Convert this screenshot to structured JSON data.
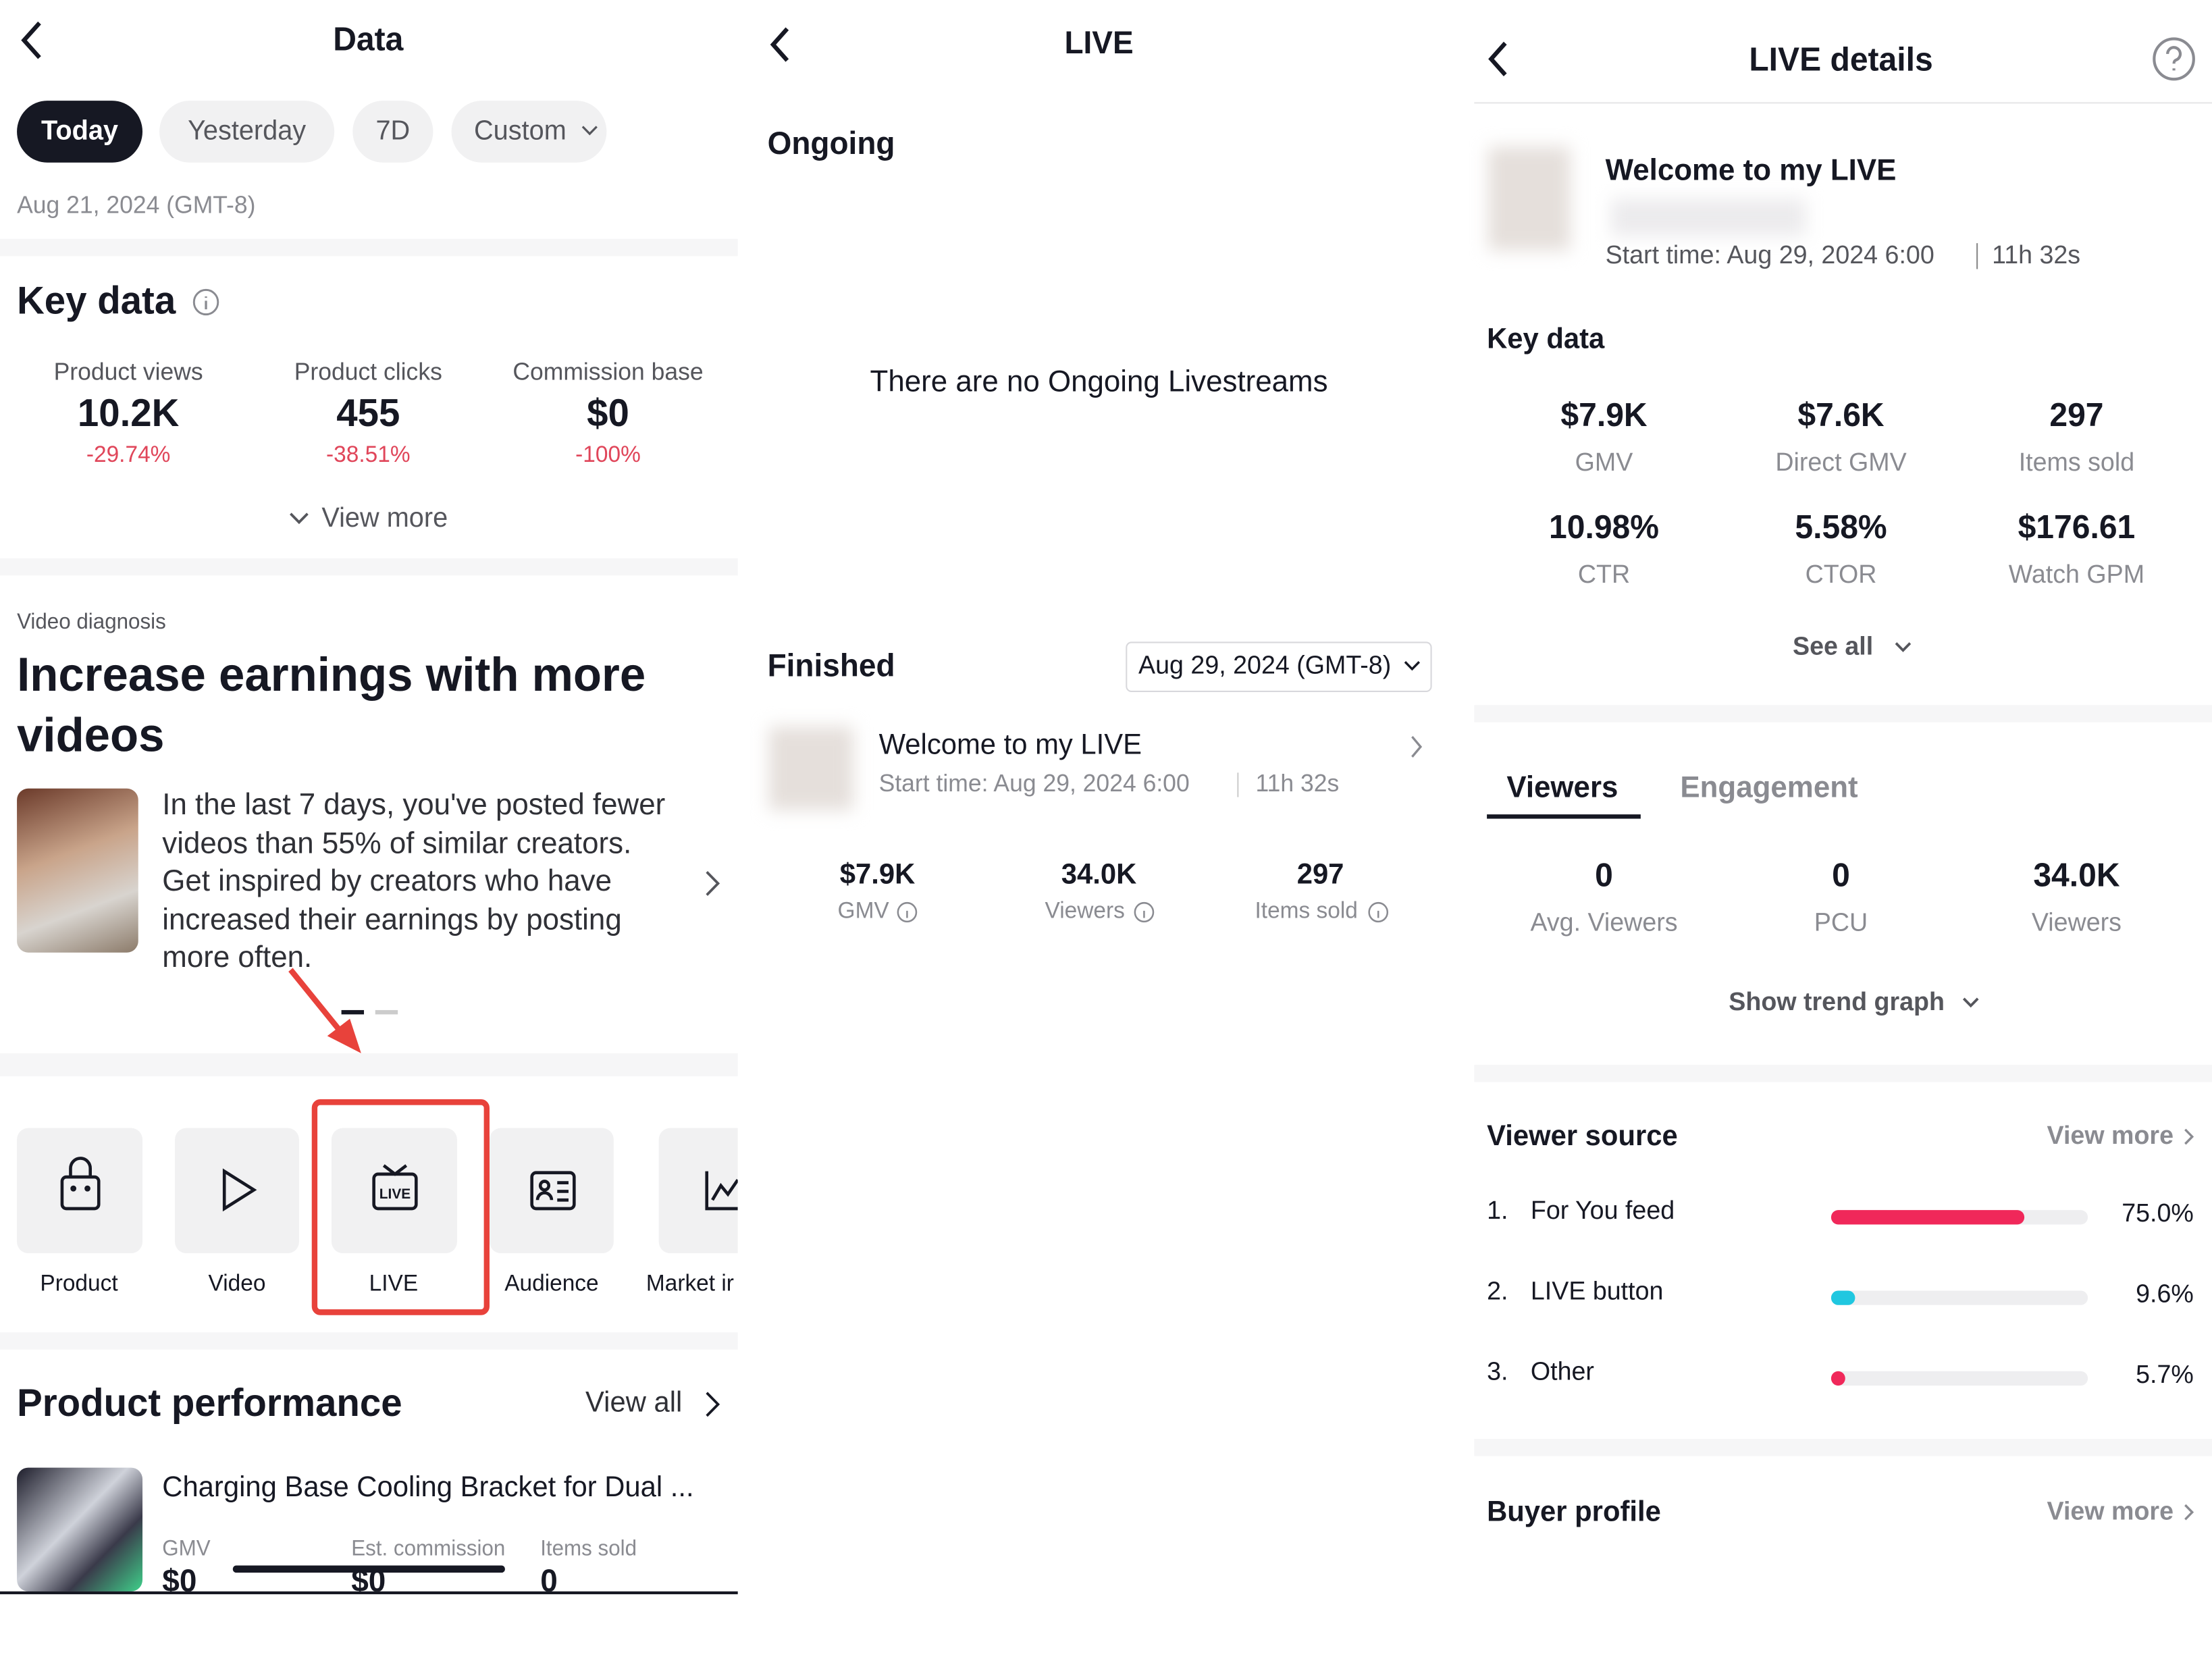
{
  "panel1": {
    "title": "Data",
    "tabs": [
      "Today",
      "Yesterday",
      "7D",
      "Custom"
    ],
    "date": "Aug 21, 2024 (GMT-8)",
    "key_data": {
      "title": "Key data",
      "metrics": [
        {
          "label": "Product views",
          "value": "10.2K",
          "change": "-29.74%"
        },
        {
          "label": "Product clicks",
          "value": "455",
          "change": "-38.51%"
        },
        {
          "label": "Commission base",
          "value": "$0",
          "change": "-100%"
        }
      ],
      "view_more": "View more"
    },
    "diagnosis": {
      "label": "Video diagnosis",
      "title": "Increase earnings with more videos",
      "text": "In the last 7 days, you've posted fewer videos than 55% of similar creators. Get inspired by creators who have increased their earnings by posting more often."
    },
    "tools": [
      "Product",
      "Video",
      "LIVE",
      "Audience",
      "Market ir"
    ],
    "performance": {
      "title": "Product performance",
      "view_all": "View all",
      "product": "Charging Base Cooling Bracket for Dual ...",
      "columns": [
        {
          "label": "GMV",
          "value": "$0"
        },
        {
          "label": "Est. commission",
          "value": "$0"
        },
        {
          "label": "Items sold",
          "value": "0"
        }
      ]
    }
  },
  "panel2": {
    "title": "LIVE",
    "ongoing": "Ongoing",
    "empty": "There are no Ongoing Livestreams",
    "finished": "Finished",
    "date": "Aug 29, 2024 (GMT-8)",
    "live": {
      "title": "Welcome to my LIVE",
      "start": "Start time: Aug 29, 2024 6:00",
      "duration": "11h 32s",
      "metrics": [
        {
          "value": "$7.9K",
          "label": "GMV"
        },
        {
          "value": "34.0K",
          "label": "Viewers"
        },
        {
          "value": "297",
          "label": "Items sold"
        }
      ]
    }
  },
  "panel3": {
    "title": "LIVE details",
    "live_title": "Welcome to my LIVE",
    "start": "Start time: Aug 29, 2024 6:00",
    "duration": "11h 32s",
    "key_data": "Key data",
    "metrics": [
      {
        "value": "$7.9K",
        "label": "GMV"
      },
      {
        "value": "$7.6K",
        "label": "Direct GMV"
      },
      {
        "value": "297",
        "label": "Items sold"
      },
      {
        "value": "10.98%",
        "label": "CTR"
      },
      {
        "value": "5.58%",
        "label": "CTOR"
      },
      {
        "value": "$176.61",
        "label": "Watch GPM"
      }
    ],
    "see_all": "See all",
    "tabs": [
      "Viewers",
      "Engagement"
    ],
    "viewer_metrics": [
      {
        "value": "0",
        "label": "Avg. Viewers"
      },
      {
        "value": "0",
        "label": "PCU"
      },
      {
        "value": "34.0K",
        "label": "Viewers"
      }
    ],
    "trend": "Show trend graph",
    "viewer_source": {
      "title": "Viewer source",
      "view_more": "View more",
      "rows": [
        {
          "rank": "1.",
          "name": "For You feed",
          "value": 75.0,
          "label": "75.0%"
        },
        {
          "rank": "2.",
          "name": "LIVE button",
          "value": 9.6,
          "label": "9.6%"
        },
        {
          "rank": "3.",
          "name": "Other",
          "value": 5.7,
          "label": "5.7%"
        }
      ]
    },
    "buyer_profile": {
      "title": "Buyer profile",
      "view_more": "View more"
    }
  }
}
